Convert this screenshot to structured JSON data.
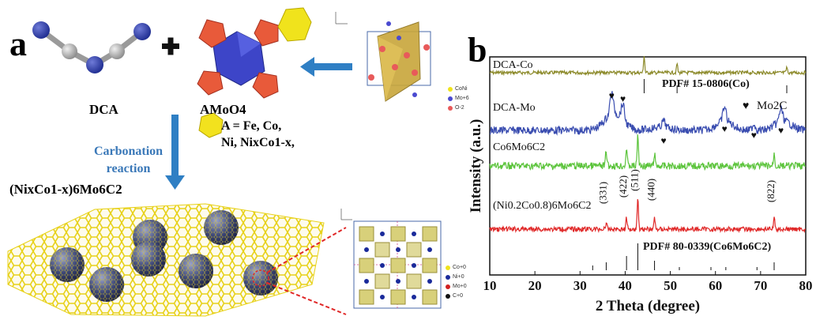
{
  "panel_a": {
    "label": "a",
    "dca_label": "DCA",
    "amoo_label": "AMoO4",
    "a_note_line1": "A = Fe, Co,",
    "a_note_line2": "Ni, NixCo1-x,",
    "reaction_line1": "Carbonation",
    "reaction_line2": "reaction",
    "product_label": "(NixCo1-x)6Mo6C2",
    "crystal_legend_top": [
      "CoNi",
      "Mo+6",
      "O-2"
    ],
    "crystal_legend_bottom": [
      "Co+0",
      "Ni+0",
      "Mo+0",
      "C+0"
    ]
  },
  "panel_b": {
    "label": "b"
  },
  "colors": {
    "dca_co": "#8c8a2a",
    "dca_mo": "#3a4db0",
    "co6mo6c2": "#5cc43c",
    "ni_co": "#e02828",
    "arrow": "#2f7fc4",
    "graphene": "#e8d21a"
  },
  "chart_data": {
    "type": "line",
    "xlabel": "2 Theta (degree)",
    "ylabel": "Intensity (a.u.)",
    "xlim": [
      10,
      80
    ],
    "xticks": [
      10,
      20,
      30,
      40,
      50,
      60,
      70,
      80
    ],
    "grid": false,
    "series": [
      {
        "name": "DCA-Co",
        "peaks": [
          44.2,
          51.5,
          75.8
        ]
      },
      {
        "name": "DCA-Mo",
        "peaks": [
          37.0,
          39.5,
          48.5,
          62.0,
          68.5,
          74.5
        ],
        "peak_marker": "♥"
      },
      {
        "name": "Co6Mo6C2",
        "peaks": [
          35.8,
          40.3,
          42.8,
          46.5,
          73.0
        ]
      },
      {
        "name": "(Ni0.2Co0.8)6Mo6C2",
        "peaks": [
          35.8,
          40.3,
          42.8,
          46.5,
          73.0
        ]
      }
    ],
    "reference_patterns": [
      {
        "label": "PDF# 15-0806(Co)",
        "positions": [
          44.2,
          51.5,
          75.8
        ]
      },
      {
        "label": "PDF# 80-0339(Co6Mo6C2)",
        "positions": [
          32.8,
          35.8,
          40.3,
          42.8,
          46.5,
          52.0,
          59.0,
          62.3,
          69.2,
          73.0
        ]
      }
    ],
    "annotations": {
      "mo2c_legend": "Mo2C",
      "mo2c_marker": "♥",
      "hkl": [
        {
          "label": "(331)",
          "x": 35.8
        },
        {
          "label": "(422)",
          "x": 40.3
        },
        {
          "label": "(511)",
          "x": 42.8
        },
        {
          "label": "(440)",
          "x": 46.5
        },
        {
          "label": "(822)",
          "x": 73.0
        }
      ]
    }
  }
}
